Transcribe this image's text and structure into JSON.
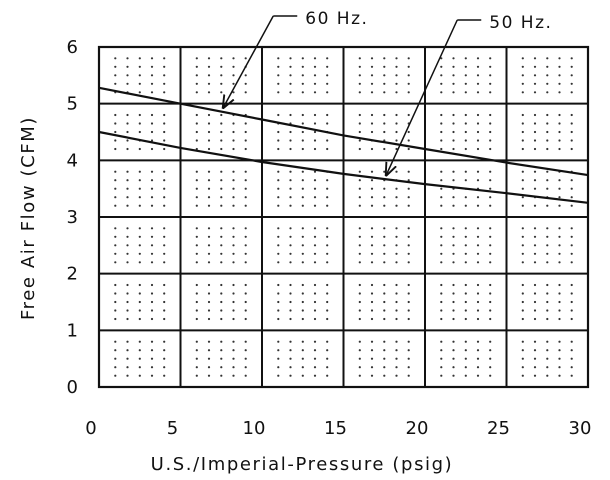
{
  "chart_data": {
    "type": "line",
    "title": "",
    "xlabel": "U.S./Imperial-Pressure (psig)",
    "ylabel": "Free Air Flow (CFM)",
    "xlim": [
      0,
      30
    ],
    "ylim": [
      0,
      6
    ],
    "x_ticks": [
      "0",
      "5",
      "10",
      "15",
      "20",
      "25",
      "30"
    ],
    "y_ticks": [
      "0",
      "1",
      "2",
      "3",
      "4",
      "5",
      "6"
    ],
    "grid": true,
    "series": [
      {
        "name": "60 Hz.",
        "x": [
          0,
          5,
          10,
          15,
          20,
          25,
          30
        ],
        "y": [
          5.28,
          5.0,
          4.72,
          4.44,
          4.2,
          3.96,
          3.74
        ]
      },
      {
        "name": "50 Hz.",
        "x": [
          0,
          5,
          10,
          15,
          20,
          25,
          30
        ],
        "y": [
          4.5,
          4.22,
          3.97,
          3.76,
          3.58,
          3.42,
          3.25
        ]
      }
    ],
    "annotations": [
      {
        "text": "60 Hz.",
        "series": 0,
        "x": 7.5
      },
      {
        "text": "50 Hz.",
        "series": 1,
        "x": 17.5
      }
    ]
  }
}
